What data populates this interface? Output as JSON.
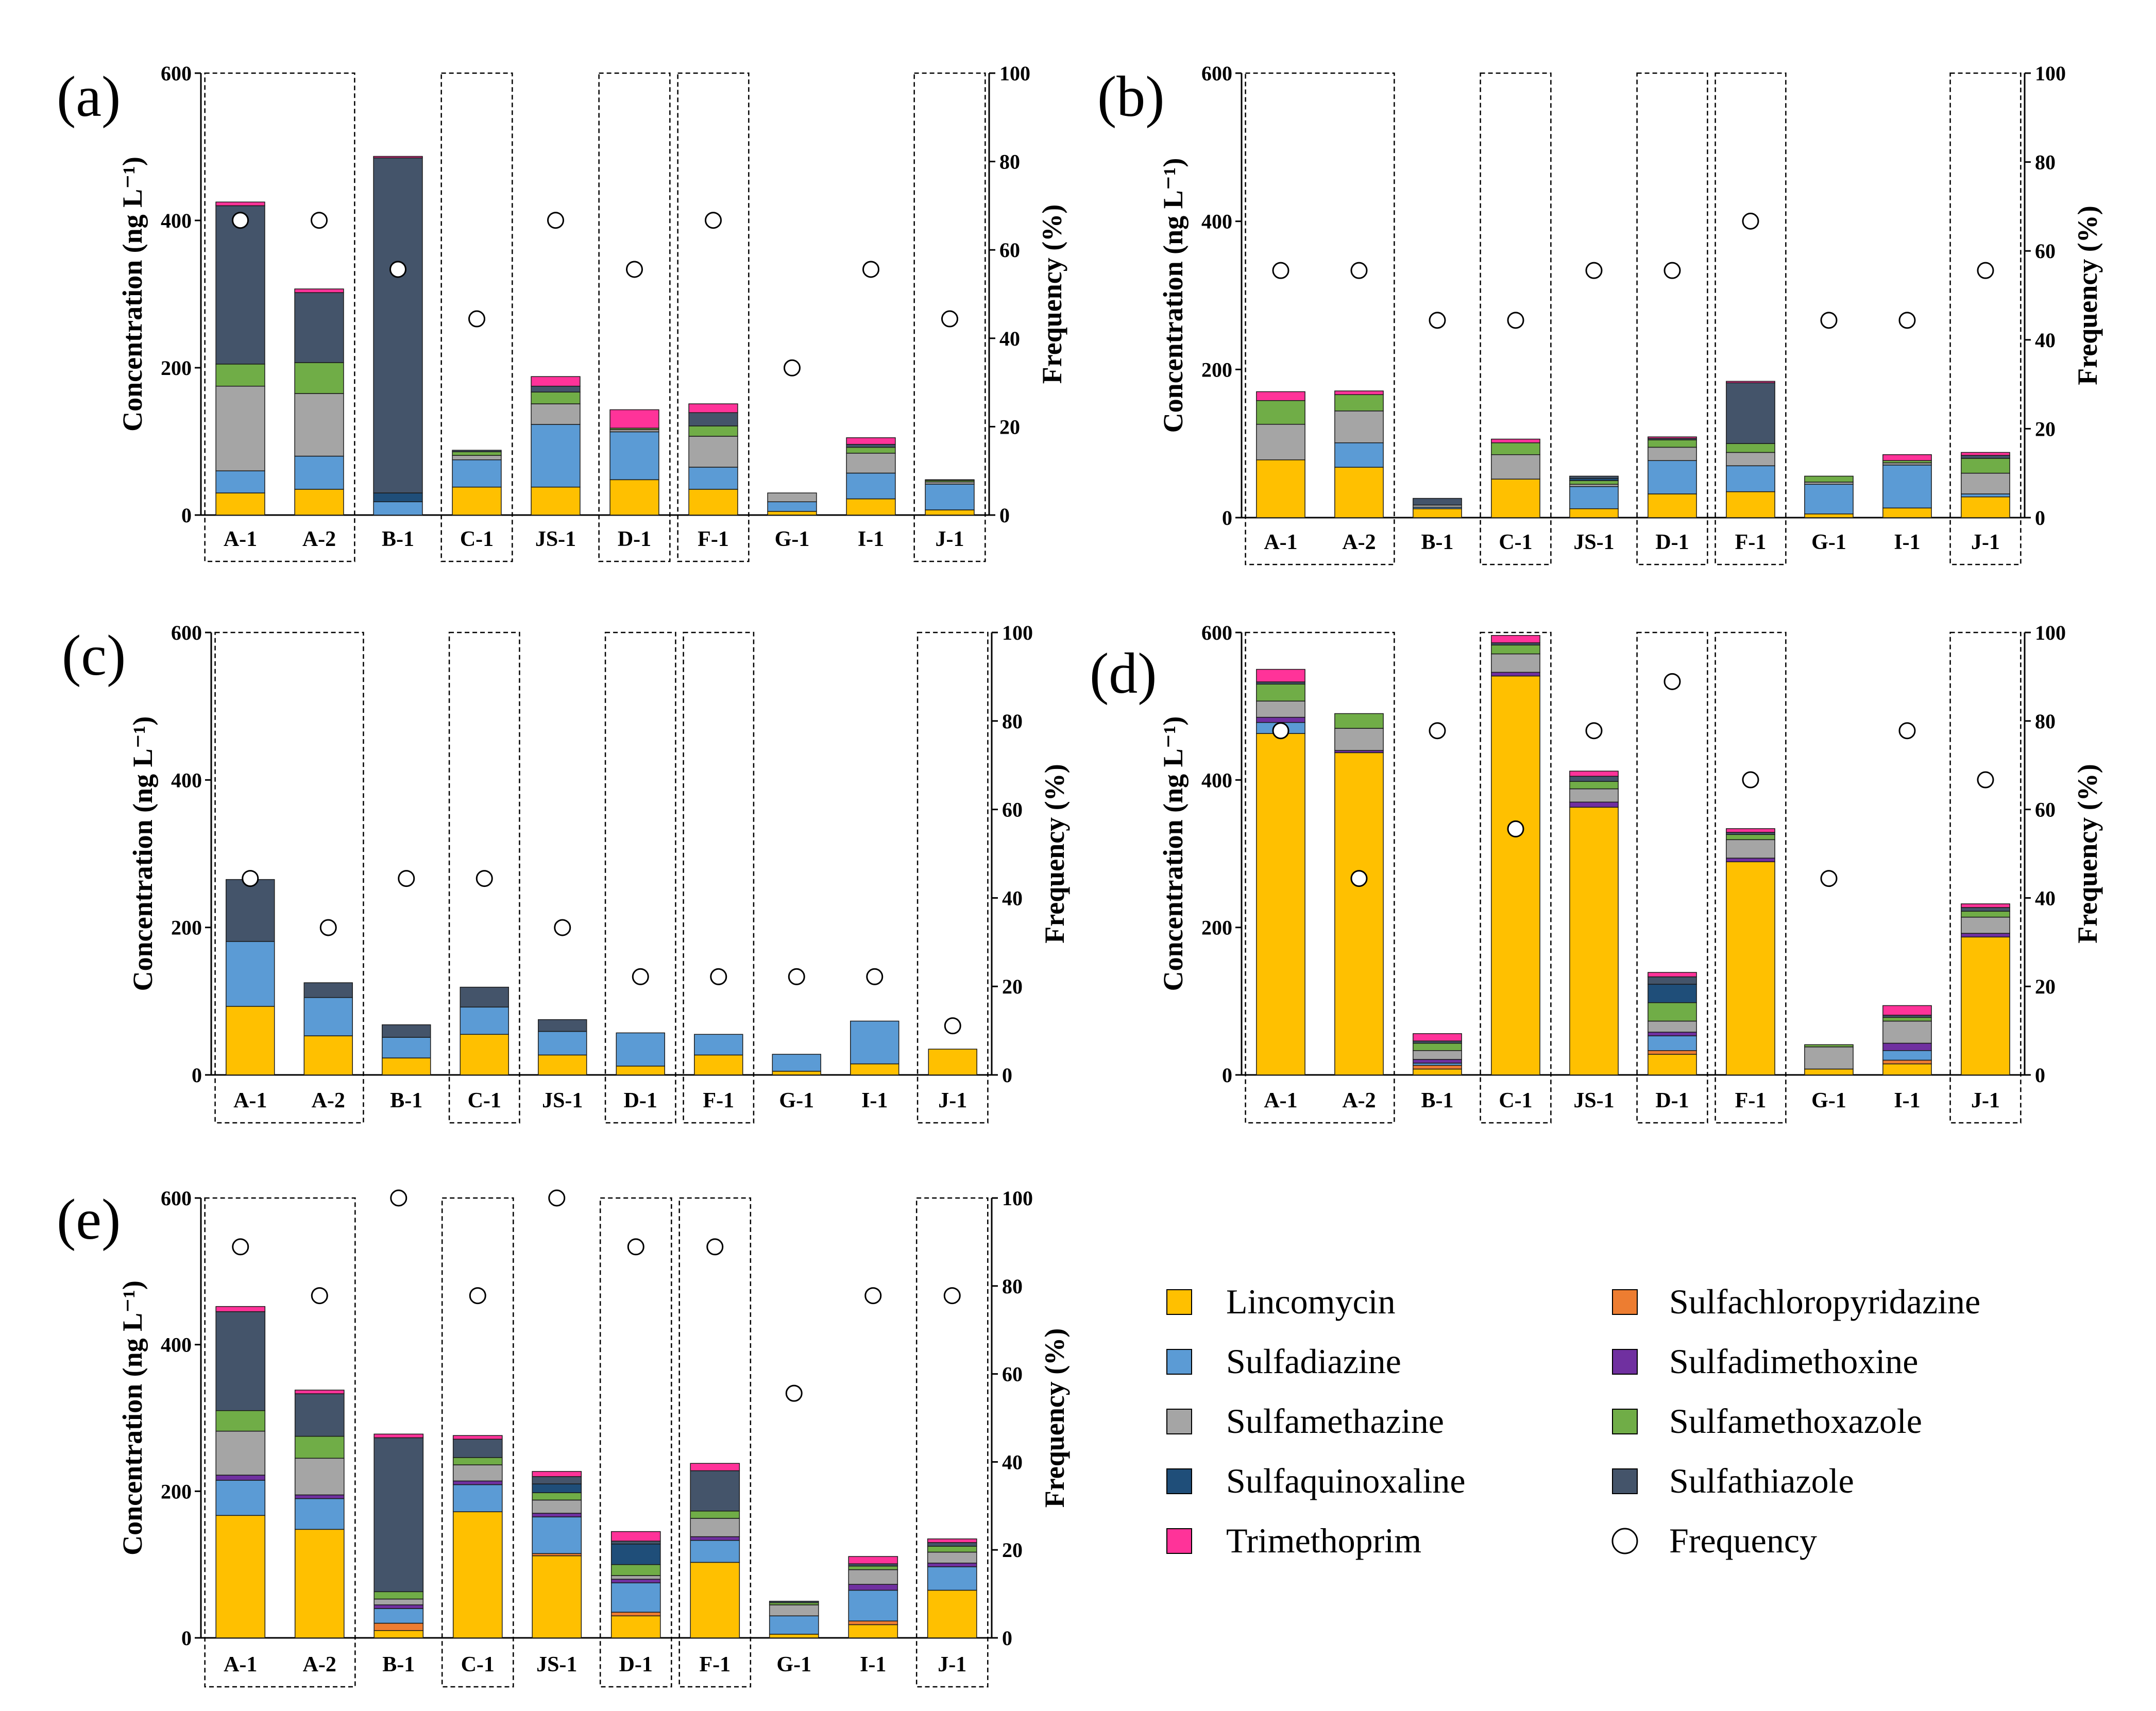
{
  "colors": {
    "Lincomycin": "#FFC000",
    "Sulfachloropyridazine": "#ED7D31",
    "Sulfadiazine": "#5B9BD5",
    "Sulfadimethoxine": "#7030A0",
    "Sulfamethazine": "#A5A5A5",
    "Sulfamethoxazole": "#70AD47",
    "Sulfaquinoxaline": "#1F4E79",
    "Sulfathiazole": "#44546A",
    "Trimethoprim": "#FF3399"
  },
  "legend": {
    "items": [
      {
        "name": "Lincomycin",
        "label": "Lincomycin"
      },
      {
        "name": "Sulfadiazine",
        "label": "Sulfadiazine"
      },
      {
        "name": "Sulfamethazine",
        "label": "Sulfamethazine"
      },
      {
        "name": "Sulfaquinoxaline",
        "label": "Sulfaquinoxaline"
      },
      {
        "name": "Trimethoprim",
        "label": "Trimethoprim"
      },
      {
        "name": "Sulfachloropyridazine",
        "label": "Sulfachloropyridazine"
      },
      {
        "name": "Sulfadimethoxine",
        "label": "Sulfadimethoxine"
      },
      {
        "name": "Sulfamethoxazole",
        "label": "Sulfamethoxazole"
      },
      {
        "name": "Sulfathiazole",
        "label": "Sulfathiazole"
      }
    ],
    "frequency_label": "Frequency"
  },
  "chart_data": [
    {
      "panel": "(a)",
      "type": "bar",
      "stacked": true,
      "ylabel": "Concentration (ng L⁻¹)",
      "y2label": "Frequency (%)",
      "ylim": [
        0,
        600
      ],
      "y2lim": [
        0,
        100
      ],
      "yticks": [
        "0",
        "200",
        "400",
        "600"
      ],
      "y2ticks": [
        "0",
        "20",
        "40",
        "60",
        "80",
        "100"
      ],
      "categories": [
        "A-1",
        "A-2",
        "B-1",
        "C-1",
        "JS-1",
        "D-1",
        "F-1",
        "G-1",
        "I-1",
        "J-1"
      ],
      "dashed_groups": [
        [
          0,
          1
        ],
        [
          3,
          3
        ],
        [
          5,
          5
        ],
        [
          6,
          6
        ],
        [
          9,
          9
        ]
      ],
      "series": [
        {
          "name": "Lincomycin",
          "values": [
            30,
            35,
            0,
            38,
            38,
            48,
            35,
            5,
            22,
            7
          ]
        },
        {
          "name": "Sulfadiazine",
          "values": [
            30,
            45,
            18,
            37,
            85,
            65,
            30,
            13,
            35,
            35
          ]
        },
        {
          "name": "Sulfamethazine",
          "values": [
            115,
            85,
            0,
            6,
            28,
            3,
            42,
            12,
            27,
            3
          ]
        },
        {
          "name": "Sulfaquinoxaline",
          "values": [
            0,
            0,
            12,
            0,
            0,
            0,
            0,
            0,
            0,
            0
          ]
        },
        {
          "name": "Sulfamethoxazole",
          "values": [
            30,
            42,
            0,
            5,
            16,
            2,
            14,
            0,
            8,
            2
          ]
        },
        {
          "name": "Sulfathiazole",
          "values": [
            215,
            95,
            455,
            2,
            8,
            0,
            18,
            0,
            4,
            0
          ]
        },
        {
          "name": "Trimethoprim",
          "values": [
            5,
            5,
            2,
            0,
            13,
            25,
            12,
            0,
            9,
            1
          ]
        }
      ],
      "frequency": [
        66.7,
        66.7,
        55.6,
        44.4,
        66.7,
        55.6,
        66.7,
        33.3,
        55.6,
        44.4
      ]
    },
    {
      "panel": "(b)",
      "type": "bar",
      "stacked": true,
      "ylabel": "Concentration (ng L⁻¹)",
      "y2label": "Frequency (%)",
      "ylim": [
        0,
        600
      ],
      "y2lim": [
        0,
        100
      ],
      "yticks": [
        "0",
        "200",
        "400",
        "600"
      ],
      "y2ticks": [
        "0",
        "20",
        "40",
        "60",
        "80",
        "100"
      ],
      "categories": [
        "A-1",
        "A-2",
        "B-1",
        "C-1",
        "JS-1",
        "D-1",
        "F-1",
        "G-1",
        "I-1",
        "J-1"
      ],
      "dashed_groups": [
        [
          0,
          1
        ],
        [
          3,
          3
        ],
        [
          5,
          5
        ],
        [
          6,
          6
        ],
        [
          9,
          9
        ]
      ],
      "series": [
        {
          "name": "Lincomycin",
          "values": [
            78,
            68,
            12,
            52,
            12,
            32,
            35,
            5,
            13,
            28
          ]
        },
        {
          "name": "Sulfadiazine",
          "values": [
            0,
            33,
            2,
            0,
            30,
            45,
            35,
            40,
            58,
            4
          ]
        },
        {
          "name": "Sulfamethazine",
          "values": [
            48,
            43,
            3,
            33,
            3,
            18,
            18,
            3,
            3,
            28
          ]
        },
        {
          "name": "Sulfaquinoxaline",
          "values": [
            0,
            0,
            0,
            0,
            3,
            0,
            0,
            0,
            0,
            0
          ]
        },
        {
          "name": "Sulfamethoxazole",
          "values": [
            32,
            22,
            0,
            16,
            5,
            10,
            12,
            8,
            3,
            20
          ]
        },
        {
          "name": "Sulfathiazole",
          "values": [
            0,
            0,
            9,
            0,
            3,
            2,
            82,
            0,
            0,
            4
          ]
        },
        {
          "name": "Trimethoprim",
          "values": [
            12,
            5,
            0,
            5,
            0,
            2,
            2,
            0,
            8,
            4
          ]
        }
      ],
      "frequency": [
        55.6,
        55.6,
        44.4,
        44.4,
        55.6,
        55.6,
        66.7,
        44.4,
        44.4,
        55.6
      ]
    },
    {
      "panel": "(c)",
      "type": "bar",
      "stacked": true,
      "ylabel": "Concentration (ng L⁻¹)",
      "y2label": "Frequency (%)",
      "ylim": [
        0,
        600
      ],
      "y2lim": [
        0,
        100
      ],
      "yticks": [
        "0",
        "200",
        "400",
        "600"
      ],
      "y2ticks": [
        "0",
        "20",
        "40",
        "60",
        "80",
        "100"
      ],
      "categories": [
        "A-1",
        "A-2",
        "B-1",
        "C-1",
        "JS-1",
        "D-1",
        "F-1",
        "G-1",
        "I-1",
        "J-1"
      ],
      "dashed_groups": [
        [
          0,
          1
        ],
        [
          3,
          3
        ],
        [
          5,
          5
        ],
        [
          6,
          6
        ],
        [
          9,
          9
        ]
      ],
      "series": [
        {
          "name": "Lincomycin",
          "values": [
            93,
            53,
            23,
            55,
            27,
            12,
            27,
            5,
            15,
            35
          ]
        },
        {
          "name": "Sulfadiazine",
          "values": [
            88,
            52,
            28,
            37,
            32,
            45,
            28,
            23,
            58,
            0
          ]
        },
        {
          "name": "Sulfathiazole",
          "values": [
            84,
            20,
            17,
            27,
            16,
            0,
            0,
            0,
            0,
            0
          ]
        }
      ],
      "frequency": [
        44.4,
        33.3,
        44.4,
        44.4,
        33.3,
        22.2,
        22.2,
        22.2,
        22.2,
        11.1
      ]
    },
    {
      "panel": "(d)",
      "type": "bar",
      "stacked": true,
      "ylabel": "Concentration (ng L⁻¹)",
      "y2label": "Frequency (%)",
      "ylim": [
        0,
        600
      ],
      "y2lim": [
        0,
        100
      ],
      "yticks": [
        "0",
        "200",
        "400",
        "600"
      ],
      "y2ticks": [
        "0",
        "20",
        "40",
        "60",
        "80",
        "100"
      ],
      "categories": [
        "A-1",
        "A-2",
        "B-1",
        "C-1",
        "JS-1",
        "D-1",
        "F-1",
        "G-1",
        "I-1",
        "J-1"
      ],
      "dashed_groups": [
        [
          0,
          1
        ],
        [
          3,
          3
        ],
        [
          5,
          5
        ],
        [
          6,
          6
        ],
        [
          9,
          9
        ]
      ],
      "series": [
        {
          "name": "Lincomycin",
          "values": [
            463,
            437,
            8,
            541,
            363,
            28,
            289,
            8,
            15,
            187
          ]
        },
        {
          "name": "Sulfachloropyridazine",
          "values": [
            0,
            0,
            5,
            0,
            0,
            5,
            0,
            0,
            5,
            0
          ]
        },
        {
          "name": "Sulfadiazine",
          "values": [
            15,
            0,
            3,
            0,
            0,
            20,
            0,
            0,
            13,
            0
          ]
        },
        {
          "name": "Sulfadimethoxine",
          "values": [
            7,
            3,
            5,
            5,
            7,
            5,
            5,
            0,
            10,
            5
          ]
        },
        {
          "name": "Sulfamethazine",
          "values": [
            22,
            30,
            12,
            25,
            18,
            15,
            25,
            30,
            30,
            22
          ]
        },
        {
          "name": "Sulfamethoxazole",
          "values": [
            23,
            20,
            10,
            12,
            10,
            25,
            7,
            3,
            5,
            8
          ]
        },
        {
          "name": "Sulfaquinoxaline",
          "values": [
            0,
            0,
            0,
            0,
            0,
            25,
            0,
            0,
            0,
            0
          ]
        },
        {
          "name": "Sulfathiazole",
          "values": [
            3,
            0,
            3,
            3,
            7,
            10,
            3,
            0,
            3,
            5
          ]
        },
        {
          "name": "Trimethoprim",
          "values": [
            17,
            0,
            10,
            10,
            7,
            6,
            5,
            0,
            13,
            5
          ]
        }
      ],
      "frequency": [
        77.8,
        44.4,
        77.8,
        55.6,
        77.8,
        88.9,
        66.7,
        44.4,
        77.8,
        66.7
      ]
    },
    {
      "panel": "(e)",
      "type": "bar",
      "stacked": true,
      "ylabel": "Concentration (ng L⁻¹)",
      "y2label": "Frequency (%)",
      "ylim": [
        0,
        600
      ],
      "y2lim": [
        0,
        100
      ],
      "yticks": [
        "0",
        "200",
        "400",
        "600"
      ],
      "y2ticks": [
        "0",
        "20",
        "40",
        "60",
        "80",
        "100"
      ],
      "categories": [
        "A-1",
        "A-2",
        "B-1",
        "C-1",
        "JS-1",
        "D-1",
        "F-1",
        "G-1",
        "I-1",
        "J-1"
      ],
      "dashed_groups": [
        [
          0,
          1
        ],
        [
          3,
          3
        ],
        [
          5,
          5
        ],
        [
          6,
          6
        ],
        [
          9,
          9
        ]
      ],
      "series": [
        {
          "name": "Lincomycin",
          "values": [
            167,
            148,
            10,
            172,
            112,
            30,
            103,
            5,
            18,
            65
          ]
        },
        {
          "name": "Sulfachloropyridazine",
          "values": [
            0,
            0,
            10,
            0,
            3,
            5,
            0,
            0,
            5,
            0
          ]
        },
        {
          "name": "Sulfadiazine",
          "values": [
            48,
            42,
            20,
            37,
            50,
            40,
            30,
            25,
            42,
            32
          ]
        },
        {
          "name": "Sulfadimethoxine",
          "values": [
            7,
            5,
            5,
            5,
            5,
            5,
            5,
            0,
            8,
            5
          ]
        },
        {
          "name": "Sulfamethazine",
          "values": [
            60,
            50,
            8,
            22,
            18,
            5,
            25,
            15,
            20,
            15
          ]
        },
        {
          "name": "Sulfamethoxazole",
          "values": [
            28,
            30,
            10,
            10,
            10,
            15,
            10,
            3,
            5,
            8
          ]
        },
        {
          "name": "Sulfaquinoxaline",
          "values": [
            0,
            0,
            0,
            0,
            12,
            28,
            0,
            0,
            0,
            0
          ]
        },
        {
          "name": "Sulfathiazole",
          "values": [
            135,
            58,
            210,
            25,
            10,
            4,
            55,
            2,
            3,
            5
          ]
        },
        {
          "name": "Trimethoprim",
          "values": [
            7,
            5,
            5,
            5,
            7,
            13,
            10,
            0,
            10,
            5
          ]
        }
      ],
      "frequency": [
        88.9,
        77.8,
        100,
        77.8,
        100,
        88.9,
        88.9,
        55.6,
        77.8,
        77.8
      ]
    }
  ]
}
